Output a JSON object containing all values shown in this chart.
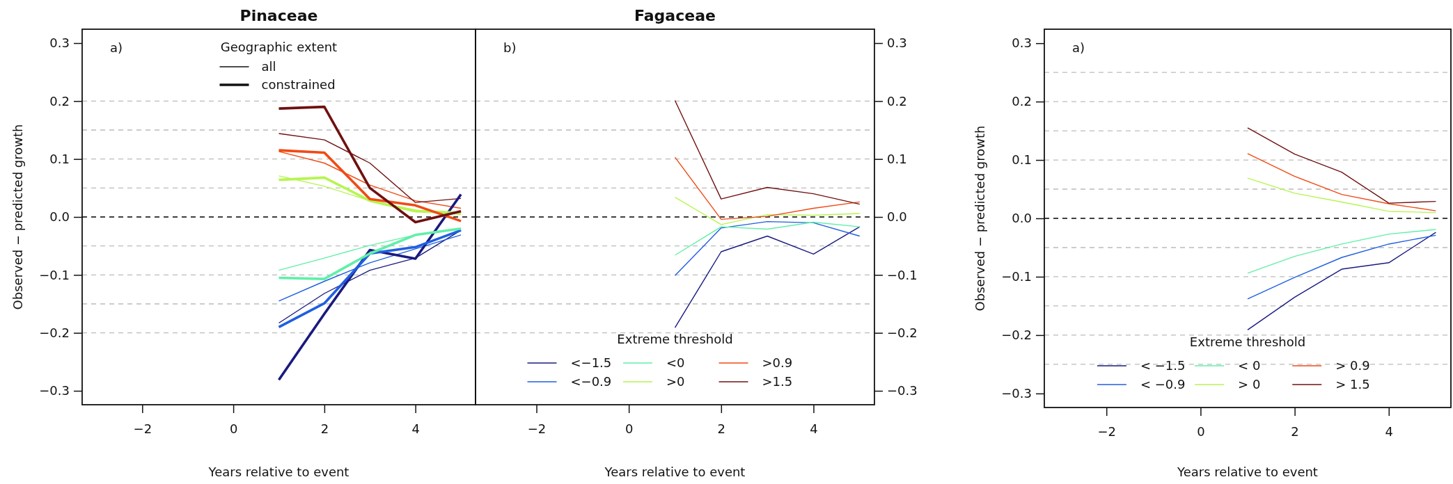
{
  "chart_data": [
    {
      "type": "line",
      "title": "Pinaceae",
      "xlabel": "Years relative to event",
      "ylabel": "Observed − predicted growth",
      "legend_title": "Geographic extent",
      "annotations": [
        "a)",
        "all",
        "constrained"
      ],
      "x": [
        1,
        2,
        3,
        4,
        5
      ],
      "xlim": [
        -3.32,
        5.32
      ],
      "xticks": [
        -2,
        0,
        2,
        4
      ],
      "ylim": [
        -0.324,
        0.324
      ],
      "yticks": [
        {
          "value": -0.3,
          "label": "−0.3"
        },
        {
          "value": -0.2,
          "label": "−0.2"
        },
        {
          "value": -0.1,
          "label": "−0.1"
        },
        {
          "value": 0,
          "label": "0.0"
        },
        0.1,
        0.2,
        0.3
      ],
      "ref_lines": [
        {
          "axis": "y",
          "value": 0,
          "color": "#000000",
          "line_style": "dashed"
        },
        {
          "axis": "y",
          "value": 0.05,
          "color": "#bbbbbb",
          "line_style": "dashed"
        },
        {
          "axis": "y",
          "value": 0.1,
          "color": "#bbbbbb",
          "line_style": "dashed"
        },
        {
          "axis": "y",
          "value": 0.15,
          "color": "#bbbbbb",
          "line_style": "dashed"
        },
        {
          "axis": "y",
          "value": 0.2,
          "color": "#bbbbbb",
          "line_style": "dashed"
        },
        {
          "axis": "y",
          "value": -0.05,
          "color": "#bbbbbb",
          "line_style": "dashed"
        },
        {
          "axis": "y",
          "value": -0.1,
          "color": "#bbbbbb",
          "line_style": "dashed"
        },
        {
          "axis": "y",
          "value": -0.15,
          "color": "#bbbbbb",
          "line_style": "dashed"
        },
        {
          "axis": "y",
          "value": -0.2,
          "color": "#bbbbbb",
          "line_style": "dashed"
        }
      ],
      "series": [
        {
          "color": "#1a1a80",
          "values": [
            -0.183,
            -0.132,
            -0.092,
            -0.071,
            -0.023
          ]
        },
        {
          "color": "#1f5fe0",
          "values": [
            -0.145,
            -0.111,
            -0.079,
            -0.055,
            -0.031
          ]
        },
        {
          "color": "#5ff0a8",
          "values": [
            -0.092,
            -0.071,
            -0.049,
            -0.031,
            -0.02
          ]
        },
        {
          "color": "#b6f550",
          "values": [
            0.071,
            0.053,
            0.028,
            0.012,
            0.004
          ]
        },
        {
          "color": "#f04a14",
          "values": [
            0.113,
            0.093,
            0.055,
            0.028,
            0.015
          ]
        },
        {
          "color": "#701010",
          "values": [
            0.144,
            0.133,
            0.093,
            0.025,
            0.032
          ]
        },
        {
          "color": "#1a1a80",
          "values": [
            -0.281,
            -0.167,
            -0.057,
            -0.072,
            0.039
          ]
        },
        {
          "color": "#1f5fe0",
          "values": [
            -0.19,
            -0.149,
            -0.063,
            -0.052,
            -0.023
          ]
        },
        {
          "color": "#5ff0a8",
          "values": [
            -0.105,
            -0.107,
            -0.063,
            -0.031,
            -0.02
          ]
        },
        {
          "color": "#b6f550",
          "values": [
            0.064,
            0.068,
            0.028,
            0.01,
            0.007
          ]
        },
        {
          "color": "#f04a14",
          "values": [
            0.115,
            0.111,
            0.031,
            0.02,
            -0.007
          ]
        },
        {
          "color": "#701010",
          "values": [
            0.187,
            0.19,
            0.05,
            -0.009,
            0.01
          ]
        }
      ]
    },
    {
      "type": "line",
      "title": "Fagaceae",
      "xlabel": "Years relative to event",
      "legend_title": "Extreme threshold",
      "legend": "bottom",
      "annotations": [
        "b)"
      ],
      "x": [
        1,
        2,
        3,
        4,
        5
      ],
      "xlim": [
        -3.32,
        5.32
      ],
      "xticks": [
        -2,
        0,
        2,
        4
      ],
      "y2lim": [
        -0.324,
        0.324
      ],
      "y2ticks": [
        {
          "value": -0.3,
          "label": "−0.3"
        },
        {
          "value": -0.2,
          "label": "−0.2"
        },
        {
          "value": -0.1,
          "label": "−0.1"
        },
        {
          "value": 0,
          "label": "0.0"
        },
        0.1,
        0.2,
        0.3
      ],
      "ref_lines": [
        {
          "axis": "y2",
          "value": 0,
          "color": "#000000",
          "line_style": "dashed"
        },
        {
          "axis": "y2",
          "value": 0.05,
          "color": "#bbbbbb",
          "line_style": "dashed"
        },
        {
          "axis": "y2",
          "value": 0.1,
          "color": "#bbbbbb",
          "line_style": "dashed"
        },
        {
          "axis": "y2",
          "value": 0.15,
          "color": "#bbbbbb",
          "line_style": "dashed"
        },
        {
          "axis": "y2",
          "value": 0.2,
          "color": "#bbbbbb",
          "line_style": "dashed"
        },
        {
          "axis": "y2",
          "value": -0.05,
          "color": "#bbbbbb",
          "line_style": "dashed"
        },
        {
          "axis": "y2",
          "value": -0.1,
          "color": "#bbbbbb",
          "line_style": "dashed"
        },
        {
          "axis": "y2",
          "value": -0.15,
          "color": "#bbbbbb",
          "line_style": "dashed"
        },
        {
          "axis": "y2",
          "value": -0.2,
          "color": "#bbbbbb",
          "line_style": "dashed"
        }
      ],
      "series": [
        {
          "name": "<−1.5",
          "axis": "y2",
          "color": "#1a1a80",
          "values": [
            -0.191,
            -0.06,
            -0.033,
            -0.064,
            -0.017
          ]
        },
        {
          "name": "<−0.9",
          "axis": "y2",
          "color": "#1f5fe0",
          "values": [
            -0.101,
            -0.019,
            -0.008,
            -0.01,
            -0.033
          ]
        },
        {
          "name": "<0",
          "axis": "y2",
          "color": "#5ff0a8",
          "values": [
            -0.066,
            -0.017,
            -0.021,
            -0.009,
            -0.017
          ]
        },
        {
          "name": ">0",
          "axis": "y2",
          "color": "#b6f550",
          "values": [
            0.034,
            -0.013,
            0.004,
            0.003,
            0.006
          ]
        },
        {
          "name": ">0.9",
          "axis": "y2",
          "color": "#f04a14",
          "values": [
            0.103,
            -0.004,
            0.001,
            0.015,
            0.026
          ]
        },
        {
          "name": ">1.5",
          "axis": "y2",
          "color": "#701010",
          "values": [
            0.201,
            0.031,
            0.051,
            0.04,
            0.022
          ]
        }
      ]
    },
    {
      "type": "line",
      "xlabel": "Years relative to event",
      "ylabel": "Observed − predicted growth",
      "legend_title": "Extreme threshold",
      "legend": "bottom",
      "annotations": [
        "a)"
      ],
      "x": [
        1,
        2,
        3,
        4,
        5
      ],
      "xlim": [
        -3.32,
        5.32
      ],
      "xticks": [
        -2,
        0,
        2,
        4
      ],
      "ylim": [
        -0.324,
        0.324
      ],
      "yticks": [
        {
          "value": -0.3,
          "label": "−0.3"
        },
        {
          "value": -0.2,
          "label": "−0.2"
        },
        {
          "value": -0.1,
          "label": "−0.1"
        },
        {
          "value": 0,
          "label": "0.0"
        },
        0.1,
        0.2,
        0.3
      ],
      "ref_lines": [
        {
          "axis": "y",
          "value": 0,
          "color": "#000000",
          "line_style": "dashed"
        },
        {
          "axis": "y",
          "value": 0.05,
          "color": "#bbbbbb",
          "line_style": "dashed"
        },
        {
          "axis": "y",
          "value": 0.1,
          "color": "#bbbbbb",
          "line_style": "dashed"
        },
        {
          "axis": "y",
          "value": 0.15,
          "color": "#bbbbbb",
          "line_style": "dashed"
        },
        {
          "axis": "y",
          "value": 0.2,
          "color": "#bbbbbb",
          "line_style": "dashed"
        },
        {
          "axis": "y",
          "value": 0.25,
          "color": "#bbbbbb",
          "line_style": "dashed"
        },
        {
          "axis": "y",
          "value": -0.05,
          "color": "#bbbbbb",
          "line_style": "dashed"
        },
        {
          "axis": "y",
          "value": -0.1,
          "color": "#bbbbbb",
          "line_style": "dashed"
        },
        {
          "axis": "y",
          "value": -0.15,
          "color": "#bbbbbb",
          "line_style": "dashed"
        },
        {
          "axis": "y",
          "value": -0.2,
          "color": "#bbbbbb",
          "line_style": "dashed"
        },
        {
          "axis": "y",
          "value": -0.25,
          "color": "#bbbbbb",
          "line_style": "dashed"
        }
      ],
      "series": [
        {
          "name": "< −1.5",
          "color": "#1a1a80",
          "values": [
            -0.191,
            -0.135,
            -0.087,
            -0.076,
            -0.024
          ]
        },
        {
          "name": "< −0.9",
          "color": "#1f5fe0",
          "values": [
            -0.138,
            -0.101,
            -0.067,
            -0.044,
            -0.029
          ]
        },
        {
          "name": "< 0",
          "color": "#5ff0a8",
          "values": [
            -0.094,
            -0.065,
            -0.044,
            -0.027,
            -0.019
          ]
        },
        {
          "name": "> 0",
          "color": "#b6f550",
          "values": [
            0.069,
            0.043,
            0.028,
            0.012,
            0.01
          ]
        },
        {
          "name": "> 0.9",
          "color": "#f04a14",
          "values": [
            0.111,
            0.072,
            0.041,
            0.025,
            0.013
          ]
        },
        {
          "name": "> 1.5",
          "color": "#701010",
          "values": [
            0.155,
            0.11,
            0.079,
            0.026,
            0.029
          ]
        }
      ]
    }
  ]
}
